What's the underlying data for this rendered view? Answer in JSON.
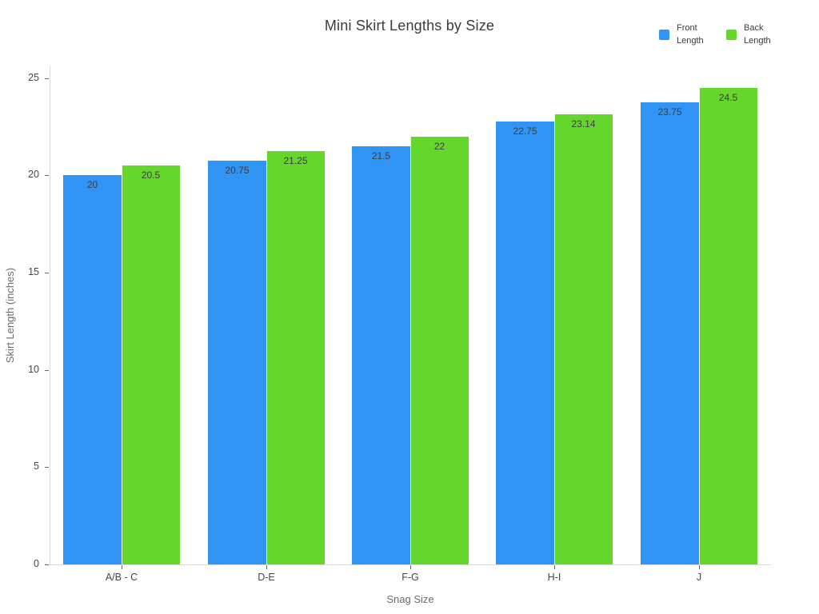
{
  "chart_data": {
    "type": "bar",
    "title": "Mini Skirt Lengths by Size",
    "xlabel": "Snag Size",
    "ylabel": "Skirt Length (inches)",
    "categories": [
      "A/B - C",
      "D-E",
      "F-G",
      "H-I",
      "J"
    ],
    "series": [
      {
        "name": "Front Length",
        "color": "#2F94F3",
        "values": [
          20,
          20.75,
          21.5,
          22.75,
          23.75
        ]
      },
      {
        "name": "Back Length",
        "color": "#64D62C",
        "values": [
          20.5,
          21.25,
          22,
          23.14,
          24.5
        ]
      }
    ],
    "ylim": [
      0,
      25.6
    ],
    "yticks": [
      0,
      5,
      10,
      15,
      20,
      25
    ],
    "grid": false,
    "legend_position": "top-right",
    "bar_labels": "inside-top",
    "background": "#ffffff"
  }
}
